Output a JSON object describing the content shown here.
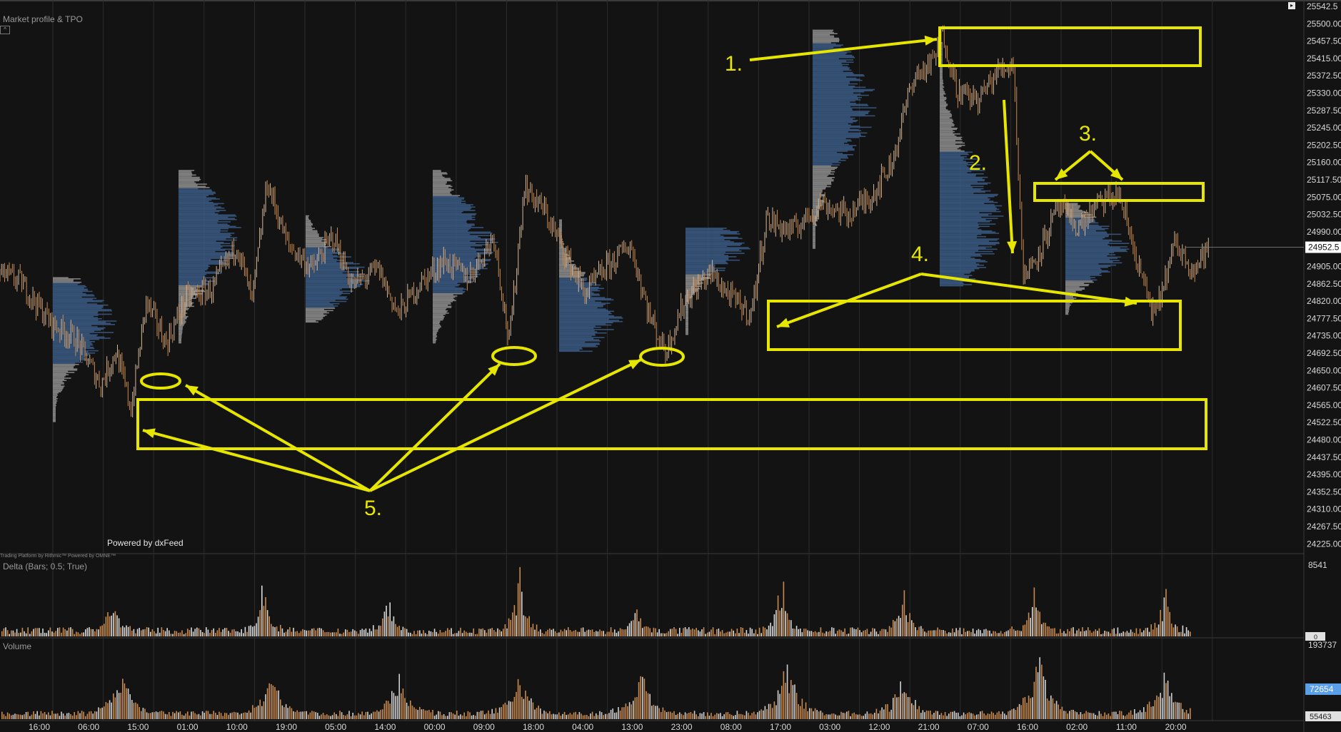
{
  "panels": {
    "main_title": "Market profile & TPO",
    "delta_title": "Delta (Bars; 0.5; True)",
    "volume_title": "Volume",
    "powered_by": "Powered by dxFeed",
    "rithmic_note": "Trading Platform by Rithmic™  Powered by OMNE™"
  },
  "chart_data": [
    {
      "type": "candlestick",
      "title": "Market profile & TPO",
      "y_ticks": [
        "25542.5",
        "25500.00",
        "25457.50",
        "25415.00",
        "25372.50",
        "25330.00",
        "25287.50",
        "25245.00",
        "25202.50",
        "25160.00",
        "25117.50",
        "25075.00",
        "25032.50",
        "24990.00",
        "24947.50",
        "24905.00",
        "24862.50",
        "24820.00",
        "24777.50",
        "24735.00",
        "24692.50",
        "24650.00",
        "24607.50",
        "24565.00",
        "24522.50",
        "24480.00",
        "24437.50",
        "24395.00",
        "24352.50",
        "24310.00",
        "24267.50",
        "24225.00"
      ],
      "ylim": [
        24220,
        25545
      ],
      "current_price": "24952.5",
      "x_ticks": [
        "16:00",
        "06:00",
        "15:00",
        "01:00",
        "10:00",
        "19:00",
        "05:00",
        "14:00",
        "00:00",
        "09:00",
        "18:00",
        "04:00",
        "13:00",
        "23:00",
        "08:00",
        "17:00",
        "03:00",
        "12:00",
        "21:00",
        "07:00",
        "16:00",
        "02:00",
        "11:00",
        "20:00"
      ],
      "close_path": [
        [
          0,
          24890
        ],
        [
          0.4,
          24870
        ],
        [
          1.0,
          24770
        ],
        [
          1.5,
          24730
        ],
        [
          2.0,
          24620
        ],
        [
          2.3,
          24700
        ],
        [
          2.6,
          24560
        ],
        [
          2.9,
          24820
        ],
        [
          3.3,
          24720
        ],
        [
          3.7,
          24830
        ],
        [
          4.2,
          24850
        ],
        [
          4.7,
          24960
        ],
        [
          5.0,
          24820
        ],
        [
          5.3,
          25110
        ],
        [
          5.7,
          24960
        ],
        [
          6.2,
          24900
        ],
        [
          6.6,
          24980
        ],
        [
          7.0,
          24860
        ],
        [
          7.5,
          24900
        ],
        [
          7.9,
          24790
        ],
        [
          8.3,
          24860
        ],
        [
          8.8,
          24920
        ],
        [
          9.3,
          24880
        ],
        [
          9.8,
          24980
        ],
        [
          10.1,
          24720
        ],
        [
          10.4,
          25100
        ],
        [
          10.8,
          25040
        ],
        [
          11.2,
          24940
        ],
        [
          11.6,
          24840
        ],
        [
          12.0,
          24900
        ],
        [
          12.5,
          24960
        ],
        [
          12.9,
          24780
        ],
        [
          13.2,
          24700
        ],
        [
          13.6,
          24830
        ],
        [
          14.1,
          24890
        ],
        [
          14.5,
          24830
        ],
        [
          14.9,
          24790
        ],
        [
          15.2,
          25020
        ],
        [
          15.7,
          24990
        ],
        [
          16.3,
          25060
        ],
        [
          16.8,
          25030
        ],
        [
          17.3,
          25080
        ],
        [
          17.7,
          25160
        ],
        [
          18.1,
          25360
        ],
        [
          18.5,
          25400
        ],
        [
          18.7,
          25470
        ],
        [
          19.0,
          25330
        ],
        [
          19.4,
          25310
        ],
        [
          19.8,
          25380
        ],
        [
          20.1,
          25400
        ],
        [
          20.3,
          24880
        ],
        [
          20.6,
          24940
        ],
        [
          21.0,
          25050
        ],
        [
          21.4,
          25000
        ],
        [
          21.8,
          25060
        ],
        [
          22.2,
          25080
        ],
        [
          22.6,
          24900
        ],
        [
          22.9,
          24780
        ],
        [
          23.3,
          24960
        ],
        [
          23.7,
          24900
        ],
        [
          24.0,
          24960
        ]
      ],
      "annotations": [
        "1.",
        "2.",
        "3.",
        "4.",
        "5."
      ]
    },
    {
      "type": "bar",
      "title": "Delta (Bars; 0.5; True)",
      "y_ticks": [
        "8541",
        "0"
      ],
      "ylim": [
        0,
        8541
      ],
      "session_spikes": [
        {
          "session": 2.2,
          "peak": 5600
        },
        {
          "session": 5.2,
          "peak": 6500
        },
        {
          "session": 7.7,
          "peak": 5000
        },
        {
          "session": 10.3,
          "peak": 8400
        },
        {
          "session": 12.6,
          "peak": 3600
        },
        {
          "session": 15.5,
          "peak": 7900
        },
        {
          "session": 17.9,
          "peak": 7400
        },
        {
          "session": 20.5,
          "peak": 7600
        },
        {
          "session": 23.1,
          "peak": 5900
        }
      ]
    },
    {
      "type": "bar",
      "title": "Volume",
      "y_ticks": [
        "193737",
        "72654",
        "55463"
      ],
      "ylim": [
        0,
        193737
      ],
      "session_spikes": [
        {
          "session": 2.4,
          "peak": 120000
        },
        {
          "session": 5.4,
          "peak": 130000
        },
        {
          "session": 7.9,
          "peak": 115000
        },
        {
          "session": 10.3,
          "peak": 120000
        },
        {
          "session": 12.7,
          "peak": 128000
        },
        {
          "session": 15.6,
          "peak": 160000
        },
        {
          "session": 17.9,
          "peak": 112000
        },
        {
          "session": 20.6,
          "peak": 185000
        },
        {
          "session": 23.1,
          "peak": 130000
        }
      ]
    }
  ],
  "colors": {
    "background": "#131313",
    "up": "#d6b89a",
    "down": "#c98a4e",
    "profile_value_area": "#3a5a82",
    "profile_other": "#8c8c8c",
    "annotation": "#e6e600",
    "grid": "#2c2c2c",
    "price_badge": "#ffffff",
    "volume_badge": "#5aa0e8"
  }
}
